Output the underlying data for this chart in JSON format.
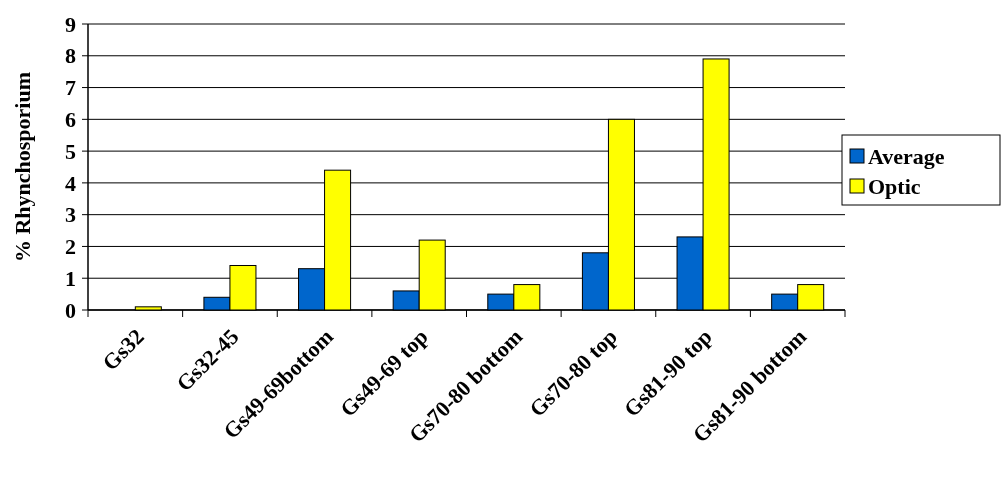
{
  "chart_data": {
    "type": "bar",
    "ylabel": "% Rhynchosporium",
    "categories": [
      "Gs32",
      "Gs32-45",
      "Gs49-69bottom",
      "Gs49-69 top",
      "Gs70-80 bottom",
      "Gs70-80 top",
      "Gs81-90 top",
      "Gs81-90 bottom"
    ],
    "series": [
      {
        "name": "Average",
        "color": "#0066cc",
        "values": [
          0,
          0.4,
          1.3,
          0.6,
          0.5,
          1.8,
          2.3,
          0.5
        ]
      },
      {
        "name": "Optic",
        "color": "#ffff00",
        "values": [
          0.1,
          1.4,
          4.4,
          2.2,
          0.8,
          6.0,
          7.9,
          0.8
        ]
      }
    ],
    "ylim": [
      0,
      9
    ],
    "yticks": [
      0,
      1,
      2,
      3,
      4,
      5,
      6,
      7,
      8,
      9
    ],
    "grid": "y",
    "legend": "right"
  }
}
